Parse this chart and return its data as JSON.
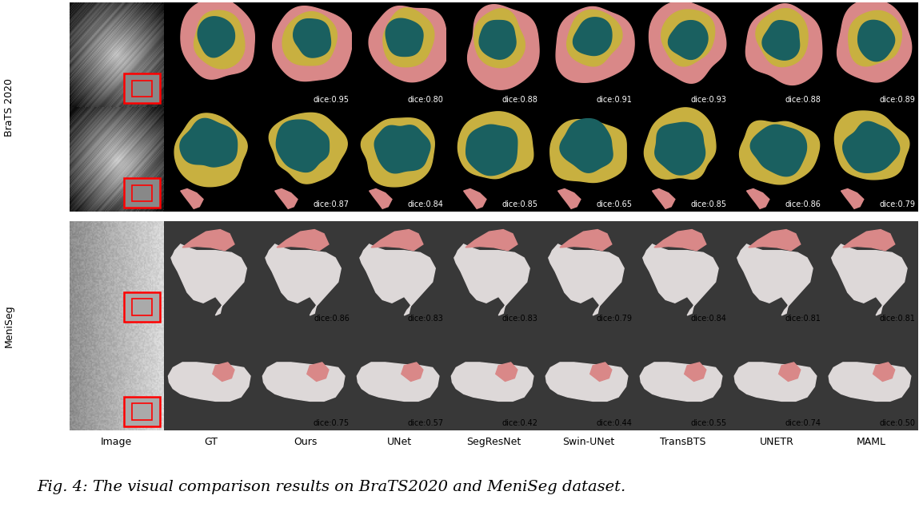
{
  "col_labels": [
    "Image",
    "GT",
    "Ours",
    "UNet",
    "SegResNet",
    "Swin-UNet",
    "TransBTS",
    "UNETR",
    "MAML"
  ],
  "row_group_labels": [
    "BraTS 2020",
    "MeniSeg"
  ],
  "dice_scores": [
    [
      null,
      null,
      0.95,
      0.8,
      0.88,
      0.91,
      0.93,
      0.88,
      0.89
    ],
    [
      null,
      null,
      0.87,
      0.84,
      0.85,
      0.65,
      0.85,
      0.86,
      0.79
    ],
    [
      null,
      null,
      0.86,
      0.83,
      0.83,
      0.79,
      0.84,
      0.81,
      0.81
    ],
    [
      null,
      null,
      0.75,
      0.57,
      0.42,
      0.44,
      0.55,
      0.74,
      0.5
    ]
  ],
  "caption": "Fig. 4: The visual comparison results on BraTS2020 and MeniSeg dataset.",
  "bg_color": "#ffffff",
  "figure_width": 11.54,
  "figure_height": 6.55,
  "n_rows": 4,
  "n_cols": 9,
  "caption_fontsize": 14,
  "dice_fontsize": 7.0,
  "col_label_fontsize": 9,
  "row_label_fontsize": 9,
  "teal": "#1a6060",
  "pink": "#d98888",
  "yellow": "#c8b040",
  "white_seg": "#ddd8d8",
  "brats_bg": "#000000",
  "meniseg_bg": "#404040",
  "mri_bg1": "#888888",
  "mri_bg2": "#606060"
}
